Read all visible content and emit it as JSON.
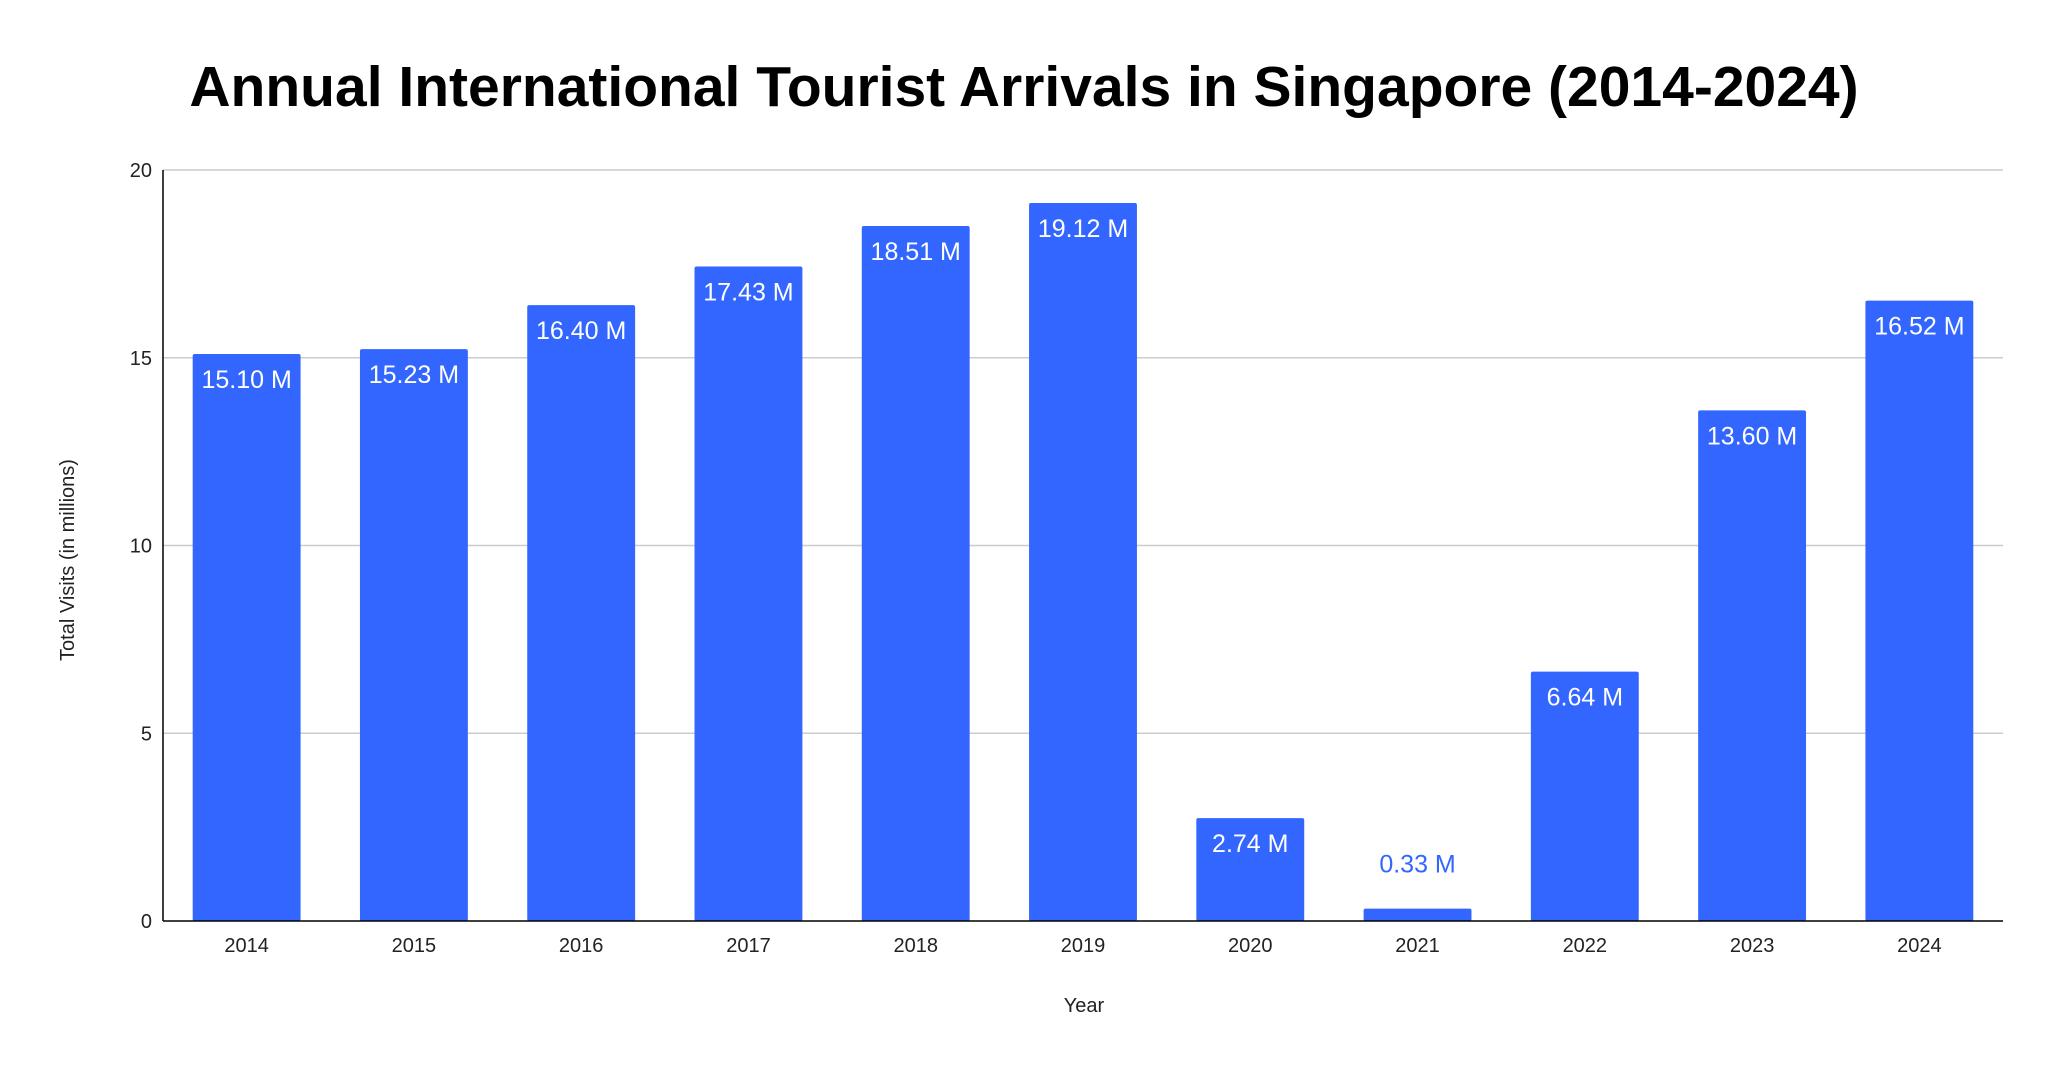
{
  "chart_data": {
    "type": "bar",
    "title": "Annual International Tourist Arrivals in Singapore (2014-2024)",
    "xlabel": "Year",
    "ylabel": "Total Visits (in millions)",
    "categories": [
      "2014",
      "2015",
      "2016",
      "2017",
      "2018",
      "2019",
      "2020",
      "2021",
      "2022",
      "2023",
      "2024"
    ],
    "values": [
      15.1,
      15.23,
      16.4,
      17.43,
      18.51,
      19.12,
      2.74,
      0.33,
      6.64,
      13.6,
      16.52
    ],
    "data_labels": [
      "15.10 M",
      "15.23 M",
      "16.40 M",
      "17.43 M",
      "18.51 M",
      "19.12 M",
      "2.74 M",
      "0.33 M",
      "6.64 M",
      "13.60 M",
      "16.52 M"
    ],
    "ylim": [
      0,
      20
    ],
    "yticks": [
      "0",
      "5",
      "10",
      "15",
      "20"
    ],
    "grid": true,
    "legend": "none",
    "colors": {
      "bar": "#3366ff",
      "label_inside": "#ffffff",
      "label_outside": "#3366ff",
      "gridline": "#cccccc",
      "axis": "#000000"
    }
  }
}
